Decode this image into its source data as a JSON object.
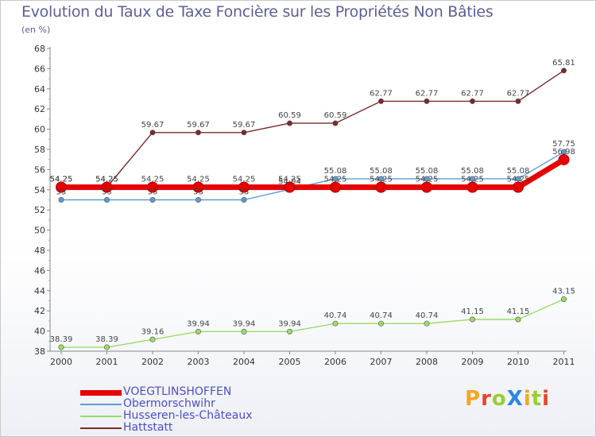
{
  "title": "Evolution du Taux de Taxe Foncière sur les Propriétés Non Bâties",
  "unit_label": "(en %)",
  "logo": {
    "letters": [
      {
        "char": "P",
        "color": "#f5a623"
      },
      {
        "char": "r",
        "color": "#e8452c"
      },
      {
        "char": "o",
        "color": "#9acd32"
      },
      {
        "char": "X",
        "color": "#2e86de"
      },
      {
        "char": "i",
        "color": "#f5a623"
      },
      {
        "char": "t",
        "color": "#9acd32"
      },
      {
        "char": "i",
        "color": "#e8452c"
      }
    ]
  },
  "chart_data": {
    "type": "line",
    "title": "Evolution du Taux de Taxe Foncière sur les Propriétés Non Bâties",
    "ylabel": "(en %)",
    "xlabel": "",
    "ylim": [
      38,
      68
    ],
    "yticks": [
      38,
      40,
      42,
      44,
      46,
      48,
      50,
      52,
      54,
      56,
      58,
      60,
      62,
      64,
      66,
      68
    ],
    "x": [
      "2000",
      "2001",
      "2002",
      "2003",
      "2004",
      "2005",
      "2006",
      "2007",
      "2008",
      "2009",
      "2010",
      "2011"
    ],
    "grid": false,
    "legend_position": "bottom-left",
    "series": [
      {
        "name": "VOEGTLINSHOFFEN",
        "color": "#e60000",
        "values": [
          54.25,
          54.25,
          54.25,
          54.25,
          54.25,
          54.25,
          54.25,
          54.25,
          54.25,
          54.25,
          54.25,
          56.98
        ],
        "labels": [
          "54.25",
          "54.25",
          "54.25",
          "54.25",
          "54.25",
          "54.25",
          "54.25",
          "54.25",
          "54.25",
          "54.25",
          "54.25",
          "56.98"
        ]
      },
      {
        "name": "Obermorschwihr",
        "color": "#5b9bd5",
        "values": [
          53,
          53,
          53,
          53,
          53,
          54.04,
          55.08,
          55.08,
          55.08,
          55.08,
          55.08,
          57.75
        ],
        "labels": [
          "53",
          "53",
          "53",
          "53",
          "53",
          "54.04",
          "55.08",
          "55.08",
          "55.08",
          "55.08",
          "55.08",
          "57.75"
        ]
      },
      {
        "name": "Husseren-les-Châteaux",
        "color": "#99dd66",
        "values": [
          38.39,
          38.39,
          39.16,
          39.94,
          39.94,
          39.94,
          40.74,
          40.74,
          40.74,
          41.15,
          41.15,
          43.15
        ],
        "labels": [
          "38.39",
          "38.39",
          "39.16",
          "39.94",
          "39.94",
          "39.94",
          "40.74",
          "40.74",
          "40.74",
          "41.15",
          "41.15",
          "43.15"
        ]
      },
      {
        "name": "Hattstatt",
        "color": "#7a2a2a",
        "values": [
          54.25,
          54.25,
          59.67,
          59.67,
          59.67,
          60.59,
          60.59,
          62.77,
          62.77,
          62.77,
          62.77,
          65.81
        ],
        "labels": [
          "54.25",
          "54.25",
          "59.67",
          "59.67",
          "59.67",
          "60.59",
          "60.59",
          "62.77",
          "62.77",
          "62.77",
          "62.77",
          "65.81"
        ]
      }
    ]
  }
}
